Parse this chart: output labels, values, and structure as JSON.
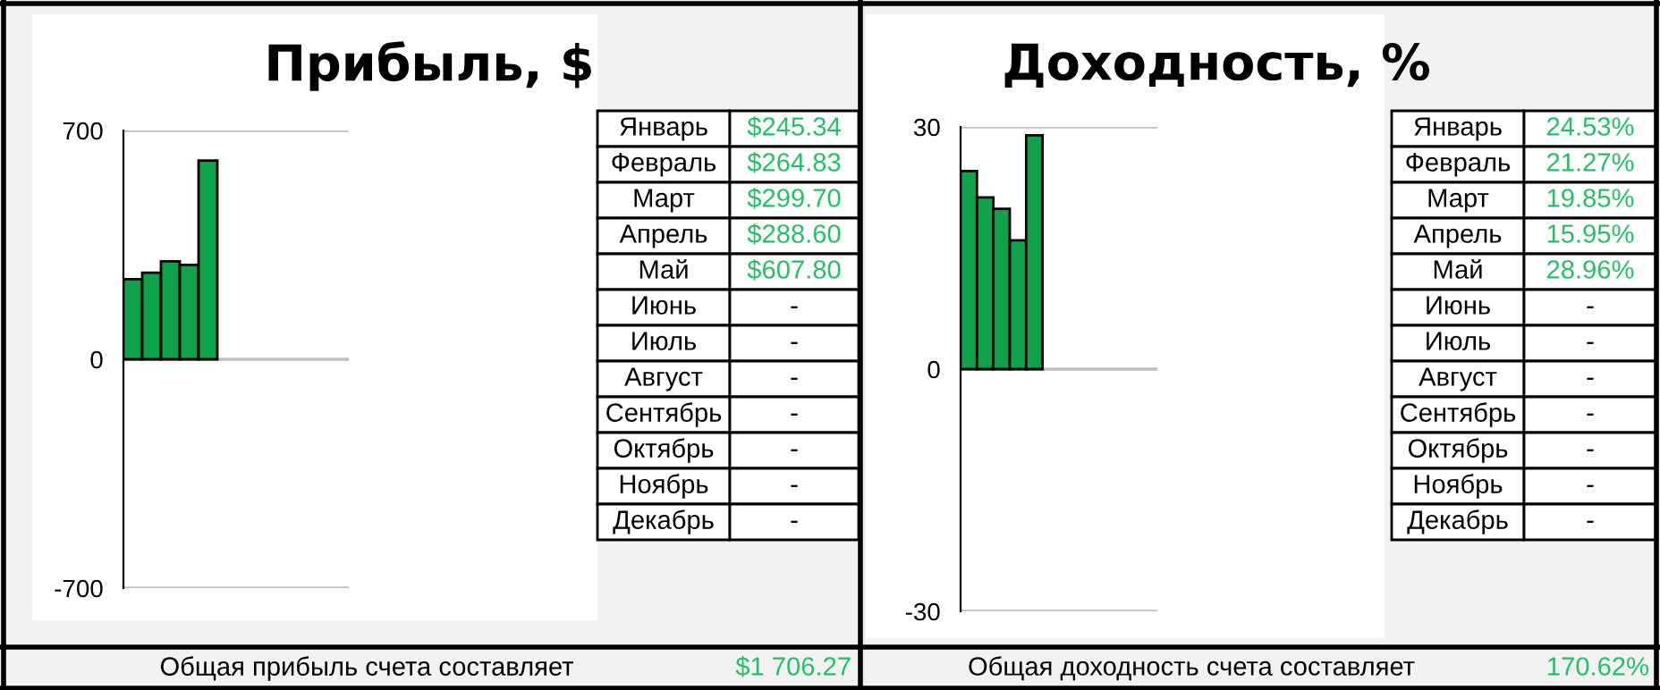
{
  "chart_data": [
    {
      "type": "bar",
      "title": "Прибыль, $",
      "categories": [
        null,
        null,
        null,
        null,
        null,
        null,
        null,
        null,
        null,
        null,
        null,
        null
      ],
      "values": [
        245.34,
        264.83,
        299.7,
        288.6,
        607.8,
        null,
        null,
        null,
        null,
        null,
        null,
        null
      ],
      "color": "#0fa24a",
      "ylim": [
        -700,
        700
      ],
      "yticks": [
        -700,
        0,
        700
      ],
      "grid": "y",
      "tick_labels": "y",
      "annotations": [
        "Общая прибыль счета составляет",
        "$1 706.27"
      ]
    },
    {
      "type": "other",
      "annotations": [
        "Январь",
        "$245.34",
        "Февраль",
        "$264.83",
        "Март",
        "$299.70",
        "Апрель",
        "$288.60",
        "Май",
        "$607.80",
        "Июнь",
        "-",
        "Июль",
        "-",
        "Август",
        "-",
        "Сентябрь",
        "-",
        "Октябрь",
        "-",
        "Ноябрь",
        "-",
        "Декабрь",
        "-"
      ]
    },
    {
      "type": "bar",
      "title": "Доходность, %",
      "categories": [
        null,
        null,
        null,
        null,
        null,
        null,
        null,
        null,
        null,
        null,
        null,
        null
      ],
      "values": [
        24.53,
        21.27,
        19.85,
        15.95,
        28.96,
        null,
        null,
        null,
        null,
        null,
        null,
        null
      ],
      "color": "#0fa24a",
      "ylim": [
        -30,
        30
      ],
      "yticks": [
        -30,
        0,
        30
      ],
      "grid": "y",
      "tick_labels": "y",
      "annotations": [
        "Общая доходность счета составляет",
        "170.62%"
      ]
    },
    {
      "type": "other",
      "annotations": [
        "Январь",
        "24.53%",
        "Февраль",
        "21.27%",
        "Март",
        "19.85%",
        "Апрель",
        "15.95%",
        "Май",
        "28.96%",
        "Июнь",
        "-",
        "Июль",
        "-",
        "Август",
        "-",
        "Сентябрь",
        "-",
        "Октябрь",
        "-",
        "Ноябрь",
        "-",
        "Декабрь",
        "-"
      ]
    }
  ]
}
